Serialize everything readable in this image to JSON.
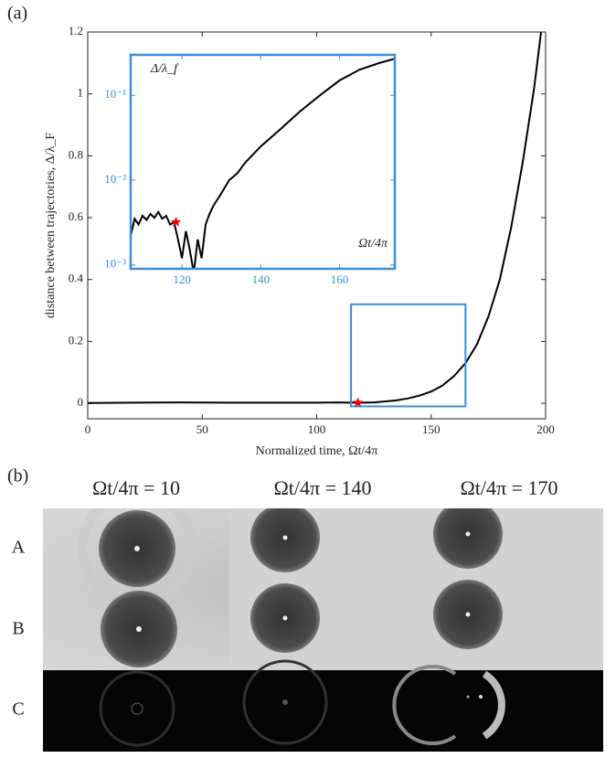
{
  "panel_labels": [
    "(a)",
    "(b)"
  ],
  "chart_data": [
    {
      "type": "line",
      "xlabel": "Normalized time, Ωt/4π",
      "ylabel": "distance between trajectories, Δ/λ_F",
      "x": [
        0,
        20,
        40,
        60,
        80,
        100,
        110,
        115,
        120,
        125,
        130,
        135,
        140,
        145,
        150,
        155,
        160,
        165,
        170,
        175,
        180,
        185,
        190,
        195,
        198
      ],
      "values": [
        0.001,
        0.002,
        0.003,
        0.002,
        0.002,
        0.002,
        0.003,
        0.002,
        0.002,
        0.003,
        0.006,
        0.01,
        0.016,
        0.025,
        0.038,
        0.058,
        0.088,
        0.13,
        0.19,
        0.28,
        0.4,
        0.57,
        0.78,
        1.02,
        1.2
      ],
      "color": "#000000",
      "xlim": [
        0,
        200
      ],
      "xticks": [
        0,
        50,
        100,
        150,
        200
      ],
      "ylim": [
        -0.05,
        1.2
      ],
      "yticks": [
        0,
        0.2,
        0.4,
        0.6,
        0.8,
        1,
        1.2
      ],
      "zoom_box": {
        "xlim": [
          115,
          165
        ],
        "ylim": [
          -0.01,
          0.32
        ],
        "color": "#3a8fdc"
      },
      "marker": {
        "x": 118,
        "y": 0.002,
        "color": "#ff0000"
      }
    },
    {
      "type": "line",
      "log_y": true,
      "xlabel": "Ωt/4π",
      "ylabel": "Δ/λ_f",
      "x": [
        107,
        108,
        109,
        110,
        111,
        112,
        113,
        114,
        115,
        116,
        117,
        118,
        119,
        120,
        121,
        122,
        123,
        124,
        125,
        126,
        127,
        128,
        130,
        132,
        134,
        136,
        138,
        140,
        145,
        150,
        155,
        160,
        165,
        170,
        174
      ],
      "values": [
        0.0022,
        0.0035,
        0.003,
        0.0038,
        0.0034,
        0.004,
        0.0036,
        0.0042,
        0.0035,
        0.0038,
        0.003,
        0.0032,
        0.002,
        0.0012,
        0.0025,
        0.0015,
        0.0008,
        0.002,
        0.0012,
        0.003,
        0.004,
        0.005,
        0.007,
        0.01,
        0.012,
        0.016,
        0.02,
        0.025,
        0.04,
        0.065,
        0.1,
        0.15,
        0.2,
        0.24,
        0.27
      ],
      "color": "#000000",
      "axis_color": "#3a8fdc",
      "xlim": [
        107,
        174
      ],
      "xticks": [
        120,
        140,
        160
      ],
      "ylim": [
        0.0009,
        0.3
      ],
      "yticks": [
        {
          "value": 0.001,
          "label": "10⁻³"
        },
        {
          "value": 0.01,
          "label": "10⁻²"
        },
        {
          "value": 0.1,
          "label": "10⁻¹"
        }
      ],
      "marker": {
        "x": 118.5,
        "y": 0.0032,
        "color": "#ff0000"
      }
    }
  ],
  "figure_b": {
    "columns": [
      "Ωt/4π = 10",
      "Ωt/4π = 140",
      "Ωt/4π = 170"
    ],
    "rows": [
      "A",
      "B",
      "C"
    ]
  }
}
